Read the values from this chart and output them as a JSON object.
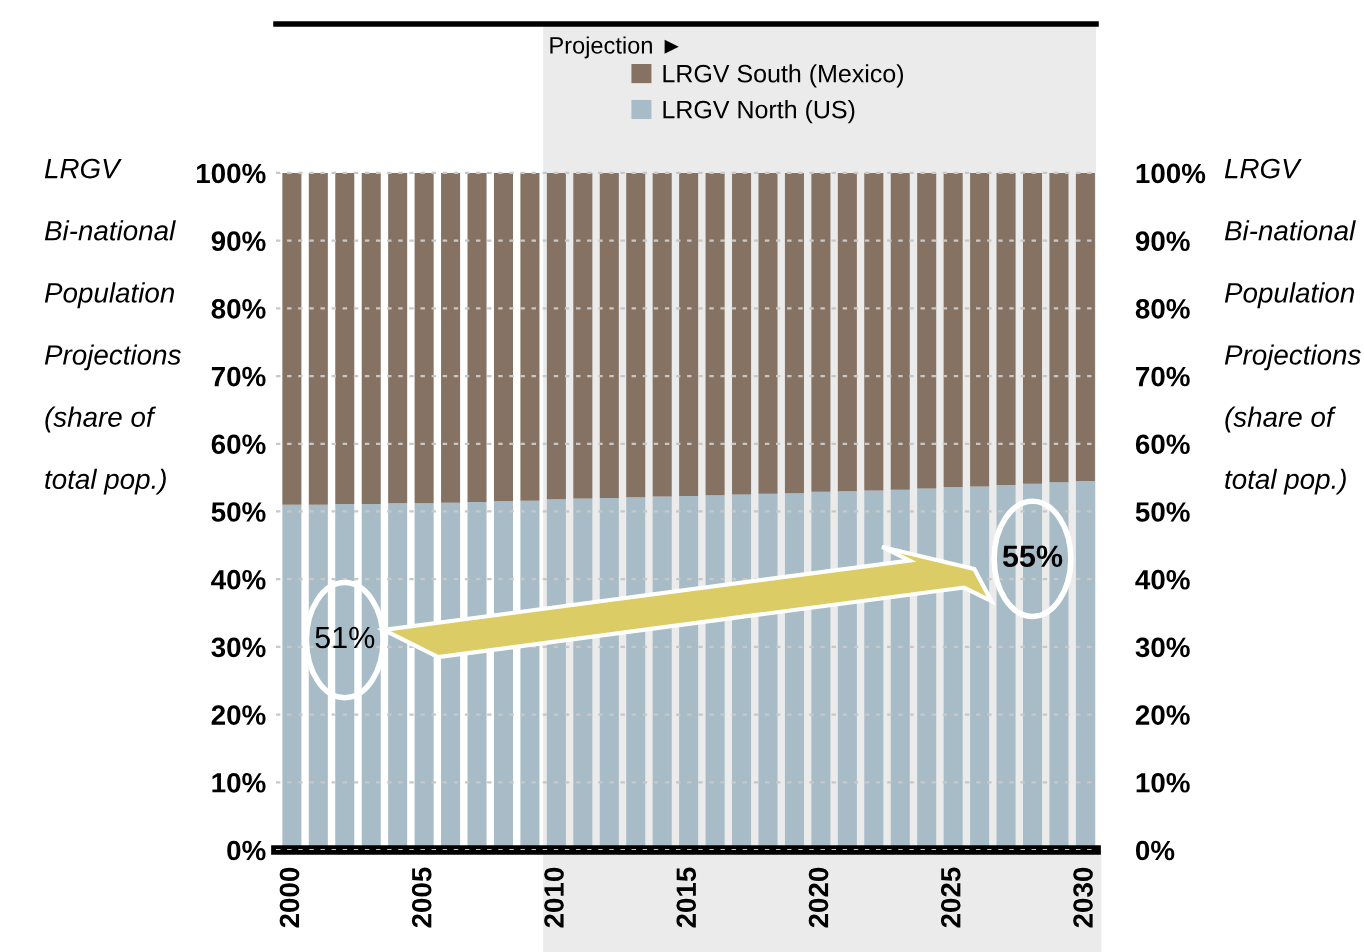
{
  "chart_data": {
    "type": "bar",
    "stacked": true,
    "categories": [
      "2000",
      null,
      null,
      null,
      null,
      "2005",
      null,
      null,
      null,
      null,
      "2010",
      null,
      null,
      null,
      null,
      "2015",
      null,
      null,
      null,
      null,
      "2020",
      null,
      null,
      null,
      null,
      "2025",
      null,
      null,
      null,
      null,
      "2030"
    ],
    "series": [
      {
        "name": "LRGV North (US)",
        "color": "#a7bcc7",
        "values": [
          51.0,
          51.0,
          51.1,
          51.1,
          51.2,
          51.2,
          51.3,
          51.4,
          51.5,
          51.6,
          51.8,
          51.9,
          52.0,
          52.1,
          52.2,
          52.3,
          52.4,
          52.5,
          52.6,
          52.7,
          52.9,
          53.0,
          53.1,
          53.2,
          53.4,
          53.6,
          53.7,
          53.9,
          54.1,
          54.3,
          54.5
        ]
      },
      {
        "name": "LRGV South (Mexico)",
        "color": "#857262",
        "values": [
          49.0,
          49.0,
          48.9,
          48.9,
          48.8,
          48.8,
          48.7,
          48.6,
          48.5,
          48.4,
          48.2,
          48.1,
          48.0,
          47.9,
          47.8,
          47.7,
          47.6,
          47.5,
          47.4,
          47.3,
          47.1,
          47.0,
          46.9,
          46.8,
          46.6,
          46.4,
          46.3,
          46.1,
          45.9,
          45.7,
          45.5
        ]
      }
    ],
    "ylim": [
      0,
      122
    ],
    "yticks": [
      {
        "value": 0,
        "label": "0%"
      },
      {
        "value": 10,
        "label": "10%"
      },
      {
        "value": 20,
        "label": "20%"
      },
      {
        "value": 30,
        "label": "30%"
      },
      {
        "value": 40,
        "label": "40%"
      },
      {
        "value": 50,
        "label": "50%"
      },
      {
        "value": 60,
        "label": "60%"
      },
      {
        "value": 70,
        "label": "70%"
      },
      {
        "value": 80,
        "label": "80%"
      },
      {
        "value": 90,
        "label": "90%"
      },
      {
        "value": 100,
        "label": "100%"
      }
    ],
    "y2lim": [
      0,
      122
    ],
    "y2ticks": [
      {
        "value": 0,
        "label": "0%"
      },
      {
        "value": 10,
        "label": "10%"
      },
      {
        "value": 20,
        "label": "20%"
      },
      {
        "value": 30,
        "label": "30%"
      },
      {
        "value": 40,
        "label": "40%"
      },
      {
        "value": 50,
        "label": "50%"
      },
      {
        "value": 60,
        "label": "60%"
      },
      {
        "value": 70,
        "label": "70%"
      },
      {
        "value": 80,
        "label": "80%"
      },
      {
        "value": 90,
        "label": "90%"
      },
      {
        "value": 100,
        "label": "100%"
      }
    ],
    "ylabel": "LRGV\nBi-national\nPopulation\nProjections\n(share of\ntotal pop.)",
    "y2label": "LRGV\nBi-national\nPopulation\nProjections\n(share of\ntotal pop.)",
    "bands": [
      {
        "axis": "x",
        "from": "2010",
        "to": "2030",
        "label": "Projection ►",
        "color": "#ebebeb"
      }
    ],
    "annotations": [
      "51%",
      "55%"
    ],
    "grid": "y",
    "legend": "top"
  }
}
